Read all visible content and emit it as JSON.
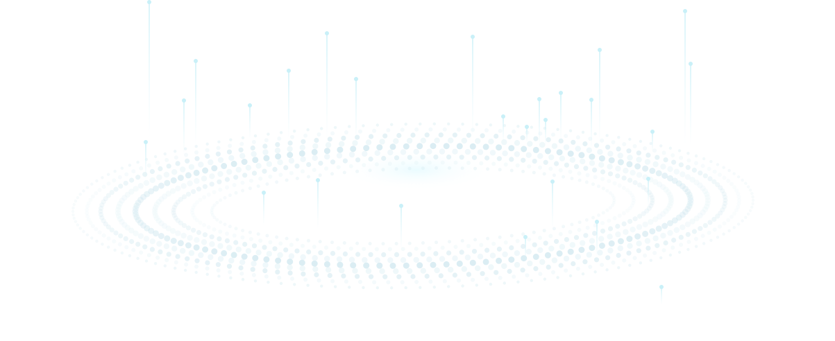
{
  "graphic": {
    "description_name": "dotted-ellipse-rings-with-light-beams",
    "colors": {
      "dot_dark": "#cfe7ef",
      "dot_light": "#e6f4f8",
      "beam": "#dff6fb",
      "beam_head": "#c9f0f8",
      "glow": "#e8fbff",
      "background": "#ffffff"
    }
  }
}
